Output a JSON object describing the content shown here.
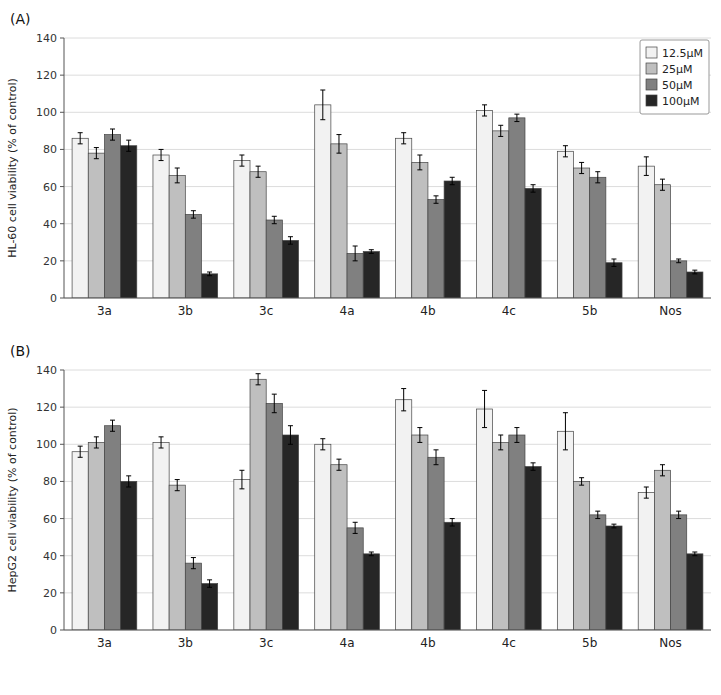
{
  "chart_data": [
    {
      "type": "bar",
      "title": "(A)",
      "y_label": "HL-60 cell viability (% of control)",
      "categories": [
        "3a",
        "3b",
        "3c",
        "4a",
        "4b",
        "4c",
        "5b",
        "Nos"
      ],
      "series": [
        {
          "name": "12.5μM",
          "color": "#f2f2f2",
          "values": [
            86,
            77,
            74,
            104,
            86,
            101,
            79,
            71
          ],
          "errors": [
            3,
            3,
            3,
            8,
            3,
            3,
            3,
            5
          ]
        },
        {
          "name": "25μM",
          "color": "#bfbfbf",
          "values": [
            78,
            66,
            68,
            83,
            73,
            90,
            70,
            61
          ],
          "errors": [
            3,
            4,
            3,
            5,
            4,
            3,
            3,
            3
          ]
        },
        {
          "name": "50μM",
          "color": "#808080",
          "values": [
            88,
            45,
            42,
            24,
            53,
            97,
            65,
            20
          ],
          "errors": [
            3,
            2,
            2,
            4,
            2,
            2,
            3,
            1
          ]
        },
        {
          "name": "100μM",
          "color": "#262626",
          "values": [
            82,
            13,
            31,
            25,
            63,
            59,
            19,
            14
          ],
          "errors": [
            3,
            1,
            2,
            1,
            2,
            2,
            2,
            1
          ]
        }
      ],
      "ylim": [
        0,
        140
      ],
      "yticks": [
        0,
        20,
        40,
        60,
        80,
        100,
        120,
        140
      ],
      "grid": true,
      "legend": "upper right"
    },
    {
      "type": "bar",
      "title": "(B)",
      "y_label": "HepG2 cell viability (% of control)",
      "categories": [
        "3a",
        "3b",
        "3c",
        "4a",
        "4b",
        "4c",
        "5b",
        "Nos"
      ],
      "series": [
        {
          "name": "12.5μM",
          "color": "#f2f2f2",
          "values": [
            96,
            101,
            81,
            100,
            124,
            119,
            107,
            74
          ],
          "errors": [
            3,
            3,
            5,
            3,
            6,
            10,
            10,
            3
          ]
        },
        {
          "name": "25μM",
          "color": "#bfbfbf",
          "values": [
            101,
            78,
            135,
            89,
            105,
            101,
            80,
            86
          ],
          "errors": [
            3,
            3,
            3,
            3,
            4,
            4,
            2,
            3
          ]
        },
        {
          "name": "50μM",
          "color": "#808080",
          "values": [
            110,
            36,
            122,
            55,
            93,
            105,
            62,
            62
          ],
          "errors": [
            3,
            3,
            5,
            3,
            4,
            4,
            2,
            2
          ]
        },
        {
          "name": "100μM",
          "color": "#262626",
          "values": [
            80,
            25,
            105,
            41,
            58,
            88,
            56,
            41
          ],
          "errors": [
            3,
            2,
            5,
            1,
            2,
            2,
            1,
            1
          ]
        }
      ],
      "ylim": [
        0,
        140
      ],
      "yticks": [
        0,
        20,
        40,
        60,
        80,
        100,
        120,
        140
      ],
      "grid": true,
      "legend": false
    }
  ]
}
